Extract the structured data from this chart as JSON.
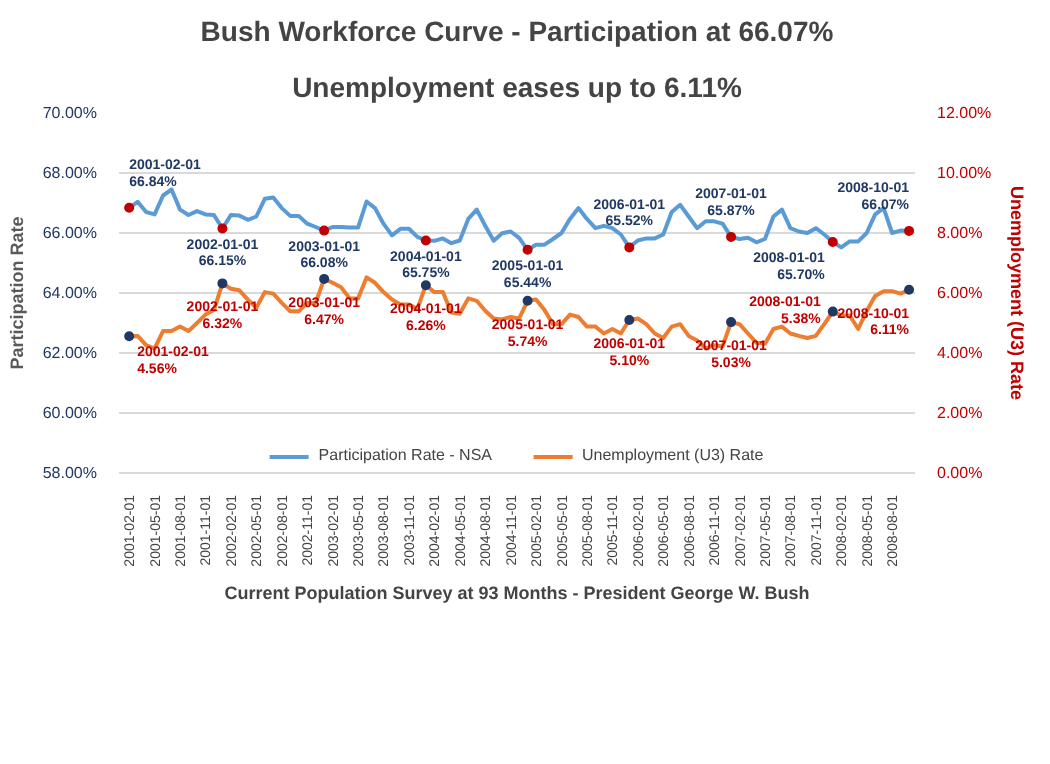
{
  "chart_data": {
    "type": "line",
    "title": "Bush Workforce Curve - Participation at 66.07%",
    "subtitle": "Unemployment eases up to 6.11%",
    "xlabel": "Current Population Survey at 93 Months - President George W. Bush",
    "ylabel": "Participation Rate",
    "y2label": "Unemployment (U3) Rate",
    "categories": [
      "2001-02-01",
      null,
      null,
      "2001-05-01",
      null,
      null,
      "2001-08-01",
      null,
      null,
      "2001-11-01",
      null,
      null,
      "2002-02-01",
      null,
      null,
      "2002-05-01",
      null,
      null,
      "2002-08-01",
      null,
      null,
      "2002-11-01",
      null,
      null,
      "2003-02-01",
      null,
      null,
      "2003-05-01",
      null,
      null,
      "2003-08-01",
      null,
      null,
      "2003-11-01",
      null,
      null,
      "2004-02-01",
      null,
      null,
      "2004-05-01",
      null,
      null,
      "2004-08-01",
      null,
      null,
      "2004-11-01",
      null,
      null,
      "2005-02-01",
      null,
      null,
      "2005-05-01",
      null,
      null,
      "2005-08-01",
      null,
      null,
      "2005-11-01",
      null,
      null,
      "2006-02-01",
      null,
      null,
      "2006-05-01",
      null,
      null,
      "2006-08-01",
      null,
      null,
      "2006-11-01",
      null,
      null,
      "2007-02-01",
      null,
      null,
      "2007-05-01",
      null,
      null,
      "2007-08-01",
      null,
      null,
      "2007-11-01",
      null,
      null,
      "2008-02-01",
      null,
      null,
      "2008-05-01",
      null,
      null,
      "2008-08-01",
      null,
      null
    ],
    "series": [
      {
        "name": "Participation Rate - NSA",
        "color": "#5b9bd5",
        "values": [
          66.84,
          67.04,
          66.7,
          66.62,
          67.25,
          67.45,
          66.78,
          66.6,
          66.73,
          66.62,
          66.6,
          66.15,
          66.6,
          66.58,
          66.44,
          66.55,
          67.14,
          67.18,
          66.83,
          66.57,
          66.57,
          66.31,
          66.2,
          66.08,
          66.2,
          66.2,
          66.18,
          66.18,
          67.05,
          66.83,
          66.31,
          65.92,
          66.14,
          66.14,
          65.87,
          65.75,
          65.74,
          65.82,
          65.66,
          65.75,
          66.47,
          66.78,
          66.24,
          65.74,
          65.99,
          66.05,
          65.84,
          65.44,
          65.61,
          65.61,
          65.8,
          66.0,
          66.47,
          66.83,
          66.47,
          66.16,
          66.24,
          66.16,
          65.95,
          65.52,
          65.75,
          65.82,
          65.82,
          65.95,
          66.7,
          66.94,
          66.55,
          66.16,
          66.39,
          66.39,
          66.31,
          65.87,
          65.8,
          65.84,
          65.69,
          65.8,
          66.55,
          66.78,
          66.16,
          66.05,
          66.0,
          66.16,
          65.95,
          65.7,
          65.52,
          65.72,
          65.72,
          66.0,
          66.62,
          66.83,
          66.0,
          66.08,
          66.07
        ],
        "value_labels": [
          "2001-02-01\n66.84%",
          null,
          null,
          null,
          null,
          null,
          null,
          null,
          null,
          null,
          null,
          "2002-01-01\n66.15%",
          null,
          null,
          null,
          null,
          null,
          null,
          null,
          null,
          null,
          null,
          null,
          "2003-01-01\n66.08%",
          null,
          null,
          null,
          null,
          null,
          null,
          null,
          null,
          null,
          null,
          null,
          "2004-01-01\n65.75%",
          null,
          null,
          null,
          null,
          null,
          null,
          null,
          null,
          null,
          null,
          null,
          "2005-01-01\n65.44%",
          null,
          null,
          null,
          null,
          null,
          null,
          null,
          null,
          null,
          null,
          null,
          "2006-01-01\n65.52%",
          null,
          null,
          null,
          null,
          null,
          null,
          null,
          null,
          null,
          null,
          null,
          "2007-01-01\n65.87%",
          null,
          null,
          null,
          null,
          null,
          null,
          null,
          null,
          null,
          null,
          null,
          "2008-01-01\n65.70%",
          null,
          null,
          null,
          null,
          null,
          null,
          null,
          null,
          "2008-10-01\n66.07%"
        ]
      },
      {
        "name": "Unemployment (U3) Rate",
        "color": "#ed7d31",
        "axis": "y2",
        "values": [
          4.56,
          4.57,
          4.26,
          4.15,
          4.73,
          4.73,
          4.88,
          4.73,
          5.0,
          5.28,
          5.43,
          6.32,
          6.14,
          6.09,
          5.78,
          5.51,
          6.03,
          5.98,
          5.67,
          5.39,
          5.39,
          5.67,
          5.67,
          6.47,
          6.34,
          6.19,
          5.82,
          5.82,
          6.52,
          6.34,
          6.03,
          5.78,
          5.62,
          5.62,
          5.47,
          6.26,
          6.03,
          6.03,
          5.35,
          5.31,
          5.82,
          5.74,
          5.41,
          5.15,
          5.12,
          5.2,
          5.15,
          5.74,
          5.78,
          5.43,
          4.96,
          4.96,
          5.28,
          5.2,
          4.88,
          4.88,
          4.65,
          4.8,
          4.65,
          5.1,
          5.15,
          4.96,
          4.65,
          4.5,
          4.88,
          4.96,
          4.57,
          4.42,
          4.15,
          4.26,
          4.22,
          5.03,
          4.96,
          4.65,
          4.34,
          4.31,
          4.8,
          4.88,
          4.65,
          4.57,
          4.5,
          4.57,
          4.96,
          5.38,
          5.25,
          5.25,
          4.8,
          5.4,
          5.9,
          6.06,
          6.06,
          5.98,
          6.11
        ],
        "value_labels": [
          "2001-02-01\n4.56%",
          null,
          null,
          null,
          null,
          null,
          null,
          null,
          null,
          null,
          null,
          "2002-01-01\n6.32%",
          null,
          null,
          null,
          null,
          null,
          null,
          null,
          null,
          null,
          null,
          null,
          "2003-01-01\n6.47%",
          null,
          null,
          null,
          null,
          null,
          null,
          null,
          null,
          null,
          null,
          null,
          "2004-01-01\n6.26%",
          null,
          null,
          null,
          null,
          null,
          null,
          null,
          null,
          null,
          null,
          null,
          "2005-01-01\n5.74%",
          null,
          null,
          null,
          null,
          null,
          null,
          null,
          null,
          null,
          null,
          null,
          "2006-01-01\n5.10%",
          null,
          null,
          null,
          null,
          null,
          null,
          null,
          null,
          null,
          null,
          null,
          "2007-01-01\n5.03%",
          null,
          null,
          null,
          null,
          null,
          null,
          null,
          null,
          null,
          null,
          null,
          "2008-01-01\n5.38%",
          null,
          null,
          null,
          null,
          null,
          null,
          null,
          null,
          "2008-10-01\n6.11%"
        ]
      }
    ],
    "ylim": [
      58,
      70
    ],
    "yticks": [
      {
        "value": 58,
        "label": "58.00%"
      },
      {
        "value": 60,
        "label": "60.00%"
      },
      {
        "value": 62,
        "label": "62.00%"
      },
      {
        "value": 64,
        "label": "64.00%"
      },
      {
        "value": 66,
        "label": "66.00%"
      },
      {
        "value": 68,
        "label": "68.00%"
      },
      {
        "value": 70,
        "label": "70.00%"
      }
    ],
    "y2lim": [
      0,
      12
    ],
    "y2ticks": [
      {
        "value": 0,
        "label": "0.00%"
      },
      {
        "value": 2,
        "label": "2.00%"
      },
      {
        "value": 4,
        "label": "4.00%"
      },
      {
        "value": 6,
        "label": "6.00%"
      },
      {
        "value": 8,
        "label": "8.00%"
      },
      {
        "value": 10,
        "label": "10.00%"
      },
      {
        "value": 12,
        "label": "12.00%"
      }
    ],
    "grid": "y",
    "legend": "bottom",
    "line_style": "solid",
    "marker": "none"
  }
}
